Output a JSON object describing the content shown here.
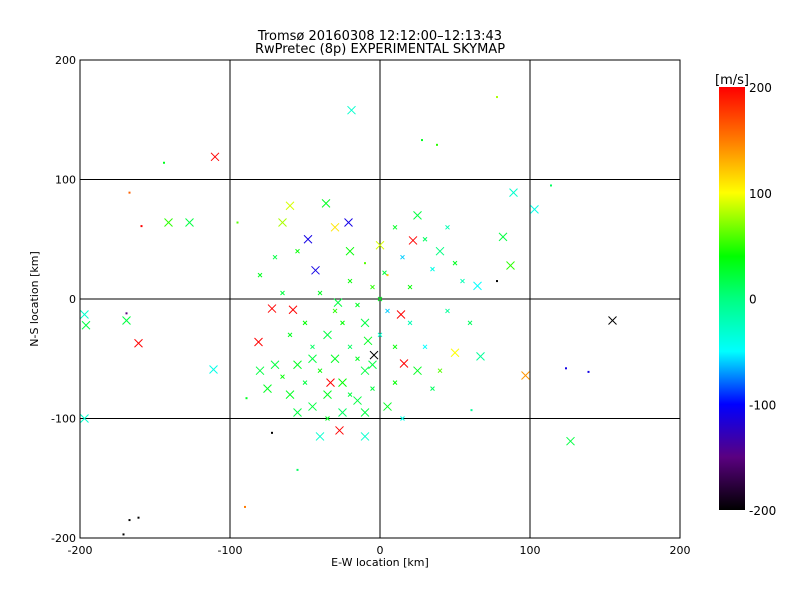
{
  "chart_data": {
    "type": "scatter",
    "title": "Tromsø 20160308 12:12:00–12:13:43",
    "subtitle": "RwPretec (8p) EXPERIMENTAL SKYMAP",
    "xlabel": "E-W location [km]",
    "ylabel": "N-S location [km]",
    "xlim": [
      -200,
      200
    ],
    "ylim": [
      -200,
      200
    ],
    "xticks": [
      -200,
      -100,
      0,
      100,
      200
    ],
    "yticks": [
      -200,
      -100,
      0,
      100,
      200
    ],
    "grid": true,
    "colorbar": {
      "label": "[m/s]",
      "range": [
        -200,
        200
      ],
      "ticks": [
        200,
        100,
        0,
        -100,
        -200
      ],
      "placement": "right"
    },
    "points_format": [
      "x_km",
      "y_km",
      "velocity_ms",
      "marker"
    ],
    "points": [
      [
        -110,
        119,
        200,
        "X"
      ],
      [
        78,
        169,
        80,
        "."
      ],
      [
        -144,
        114,
        30,
        "."
      ],
      [
        -167,
        89,
        160,
        "."
      ],
      [
        -141,
        64,
        50,
        "X"
      ],
      [
        -127,
        64,
        20,
        "X"
      ],
      [
        -159,
        61,
        200,
        "."
      ],
      [
        -95,
        64,
        60,
        "."
      ],
      [
        -197,
        -13,
        -30,
        "X"
      ],
      [
        -196,
        -22,
        20,
        "X"
      ],
      [
        -169,
        -12,
        -150,
        "."
      ],
      [
        -169,
        -18,
        20,
        "X"
      ],
      [
        -161,
        -37,
        200,
        "X"
      ],
      [
        -111,
        -59,
        -40,
        "X"
      ],
      [
        -197,
        -100,
        -30,
        "X"
      ],
      [
        -89,
        -83,
        30,
        "."
      ],
      [
        -72,
        -112,
        -200,
        "."
      ],
      [
        -55,
        -143,
        10,
        "."
      ],
      [
        -90,
        -174,
        150,
        "."
      ],
      [
        -167,
        -185,
        -200,
        "."
      ],
      [
        -161,
        -183,
        -200,
        "."
      ],
      [
        -171,
        -197,
        -200,
        "."
      ],
      [
        155,
        -18,
        -200,
        "X"
      ],
      [
        97,
        -64,
        140,
        "X"
      ],
      [
        124,
        -58,
        -110,
        "."
      ],
      [
        139,
        -61,
        -110,
        "."
      ],
      [
        127,
        -119,
        20,
        "X"
      ],
      [
        103,
        75,
        -40,
        "X"
      ],
      [
        89,
        89,
        -30,
        "X"
      ],
      [
        114,
        95,
        10,
        "."
      ],
      [
        87,
        28,
        50,
        "X"
      ],
      [
        82,
        52,
        20,
        "X"
      ],
      [
        78,
        15,
        -200,
        "."
      ],
      [
        65,
        11,
        -50,
        "X"
      ],
      [
        67,
        -48,
        -10,
        "X"
      ],
      [
        61,
        -93,
        -10,
        "."
      ],
      [
        -19,
        158,
        -30,
        "X"
      ],
      [
        28,
        133,
        30,
        "."
      ],
      [
        38,
        129,
        50,
        "."
      ],
      [
        22,
        49,
        200,
        "X"
      ],
      [
        -21,
        64,
        -110,
        "X"
      ],
      [
        -43,
        24,
        -110,
        "X"
      ],
      [
        -72,
        -8,
        200,
        "X"
      ],
      [
        -58,
        -9,
        200,
        "X"
      ],
      [
        -81,
        -36,
        200,
        "X"
      ],
      [
        14,
        -13,
        200,
        "X"
      ],
      [
        16,
        -54,
        200,
        "X"
      ],
      [
        -27,
        -110,
        200,
        "X"
      ],
      [
        -33,
        -70,
        200,
        "X"
      ],
      [
        -4,
        -47,
        -200,
        "X"
      ],
      [
        -48,
        50,
        -110,
        "X"
      ],
      [
        -65,
        64,
        80,
        "X"
      ],
      [
        -60,
        78,
        90,
        "X"
      ],
      [
        -36,
        80,
        30,
        "X"
      ],
      [
        -30,
        60,
        110,
        "X"
      ],
      [
        -20,
        40,
        40,
        "X"
      ],
      [
        -10,
        30,
        60,
        "."
      ],
      [
        0,
        45,
        90,
        "X"
      ],
      [
        5,
        20,
        120,
        "."
      ],
      [
        10,
        60,
        30,
        "x"
      ],
      [
        15,
        35,
        -60,
        "x"
      ],
      [
        20,
        10,
        40,
        "x"
      ],
      [
        25,
        70,
        20,
        "X"
      ],
      [
        30,
        50,
        10,
        "x"
      ],
      [
        35,
        25,
        -40,
        "x"
      ],
      [
        40,
        40,
        0,
        "X"
      ],
      [
        45,
        60,
        -20,
        "x"
      ],
      [
        50,
        30,
        30,
        "x"
      ],
      [
        -5,
        10,
        50,
        "x"
      ],
      [
        -15,
        -5,
        30,
        "x"
      ],
      [
        -25,
        -20,
        40,
        "x"
      ],
      [
        -35,
        -30,
        20,
        "X"
      ],
      [
        -45,
        -40,
        10,
        "x"
      ],
      [
        -55,
        -55,
        30,
        "X"
      ],
      [
        -65,
        -65,
        40,
        "x"
      ],
      [
        -70,
        -55,
        20,
        "X"
      ],
      [
        -60,
        -80,
        30,
        "X"
      ],
      [
        -50,
        -70,
        20,
        "x"
      ],
      [
        -40,
        -60,
        40,
        "x"
      ],
      [
        -30,
        -50,
        30,
        "X"
      ],
      [
        -20,
        -40,
        10,
        "x"
      ],
      [
        -10,
        -60,
        20,
        "X"
      ],
      [
        0,
        -30,
        -30,
        "x"
      ],
      [
        10,
        -40,
        40,
        "x"
      ],
      [
        20,
        -20,
        -20,
        "x"
      ],
      [
        25,
        -60,
        30,
        "X"
      ],
      [
        30,
        -40,
        -50,
        "x"
      ],
      [
        35,
        -75,
        10,
        "x"
      ],
      [
        -15,
        -85,
        20,
        "X"
      ],
      [
        -25,
        -95,
        10,
        "X"
      ],
      [
        -35,
        -100,
        30,
        "x"
      ],
      [
        -45,
        -90,
        20,
        "X"
      ],
      [
        -5,
        -75,
        20,
        "x"
      ],
      [
        5,
        -90,
        30,
        "X"
      ],
      [
        15,
        -100,
        -40,
        "x"
      ],
      [
        -55,
        -95,
        20,
        "X"
      ],
      [
        -75,
        -75,
        30,
        "X"
      ],
      [
        -80,
        -60,
        20,
        "X"
      ],
      [
        -30,
        -10,
        50,
        "x"
      ],
      [
        -40,
        5,
        30,
        "x"
      ],
      [
        -20,
        15,
        40,
        "x"
      ],
      [
        -10,
        -20,
        20,
        "X"
      ],
      [
        0,
        0,
        30,
        "x"
      ],
      [
        5,
        -10,
        -60,
        "x"
      ],
      [
        -50,
        -20,
        40,
        "x"
      ],
      [
        -60,
        -30,
        30,
        "x"
      ],
      [
        -45,
        -50,
        20,
        "X"
      ],
      [
        -25,
        -70,
        40,
        "X"
      ],
      [
        -15,
        -50,
        30,
        "x"
      ],
      [
        -5,
        -55,
        20,
        "X"
      ],
      [
        10,
        -70,
        40,
        "x"
      ],
      [
        -35,
        -80,
        30,
        "X"
      ],
      [
        -20,
        -80,
        20,
        "x"
      ],
      [
        -10,
        -95,
        20,
        "X"
      ],
      [
        -40,
        -115,
        -30,
        "X"
      ],
      [
        -10,
        -115,
        -30,
        "X"
      ],
      [
        50,
        -45,
        100,
        "X"
      ],
      [
        40,
        -60,
        60,
        "x"
      ],
      [
        55,
        15,
        -20,
        "x"
      ],
      [
        45,
        -10,
        -10,
        "x"
      ],
      [
        -70,
        35,
        20,
        "x"
      ],
      [
        -55,
        40,
        40,
        "x"
      ],
      [
        -80,
        20,
        30,
        "x"
      ],
      [
        -65,
        5,
        20,
        "x"
      ],
      [
        60,
        -20,
        10,
        "x"
      ],
      [
        -28,
        -3,
        20,
        "X"
      ],
      [
        -8,
        -35,
        30,
        "X"
      ],
      [
        3,
        22,
        20,
        "x"
      ]
    ]
  }
}
